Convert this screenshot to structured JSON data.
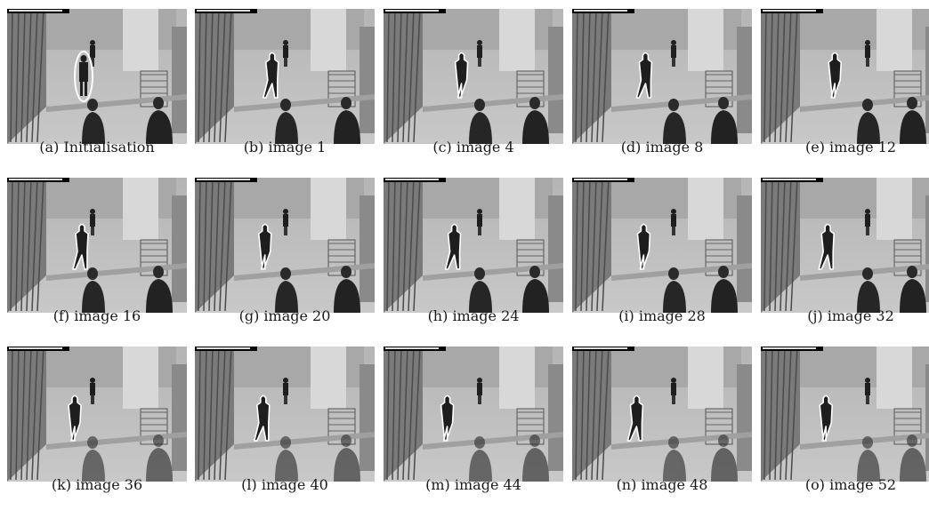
{
  "figure": {
    "panels": [
      {
        "caption": "(a) Initialisation"
      },
      {
        "caption": "(b) image 1"
      },
      {
        "caption": "(c) image 4"
      },
      {
        "caption": "(d) image 8"
      },
      {
        "caption": "(e) image 12"
      },
      {
        "caption": "(f) image 16"
      },
      {
        "caption": "(g) image 20"
      },
      {
        "caption": "(h) image 24"
      },
      {
        "caption": "(i) image 28"
      },
      {
        "caption": "(j) image 32"
      },
      {
        "caption": "(k) image 36"
      },
      {
        "caption": "(l) image 40"
      },
      {
        "caption": "(m) image 44"
      },
      {
        "caption": "(n) image 48"
      },
      {
        "caption": "(o) image 52"
      }
    ],
    "colors": {
      "contour": "#ffffff",
      "floor": "#c8c8c8",
      "wall": "#7a7a7a",
      "person": "#1e1e1e"
    }
  }
}
